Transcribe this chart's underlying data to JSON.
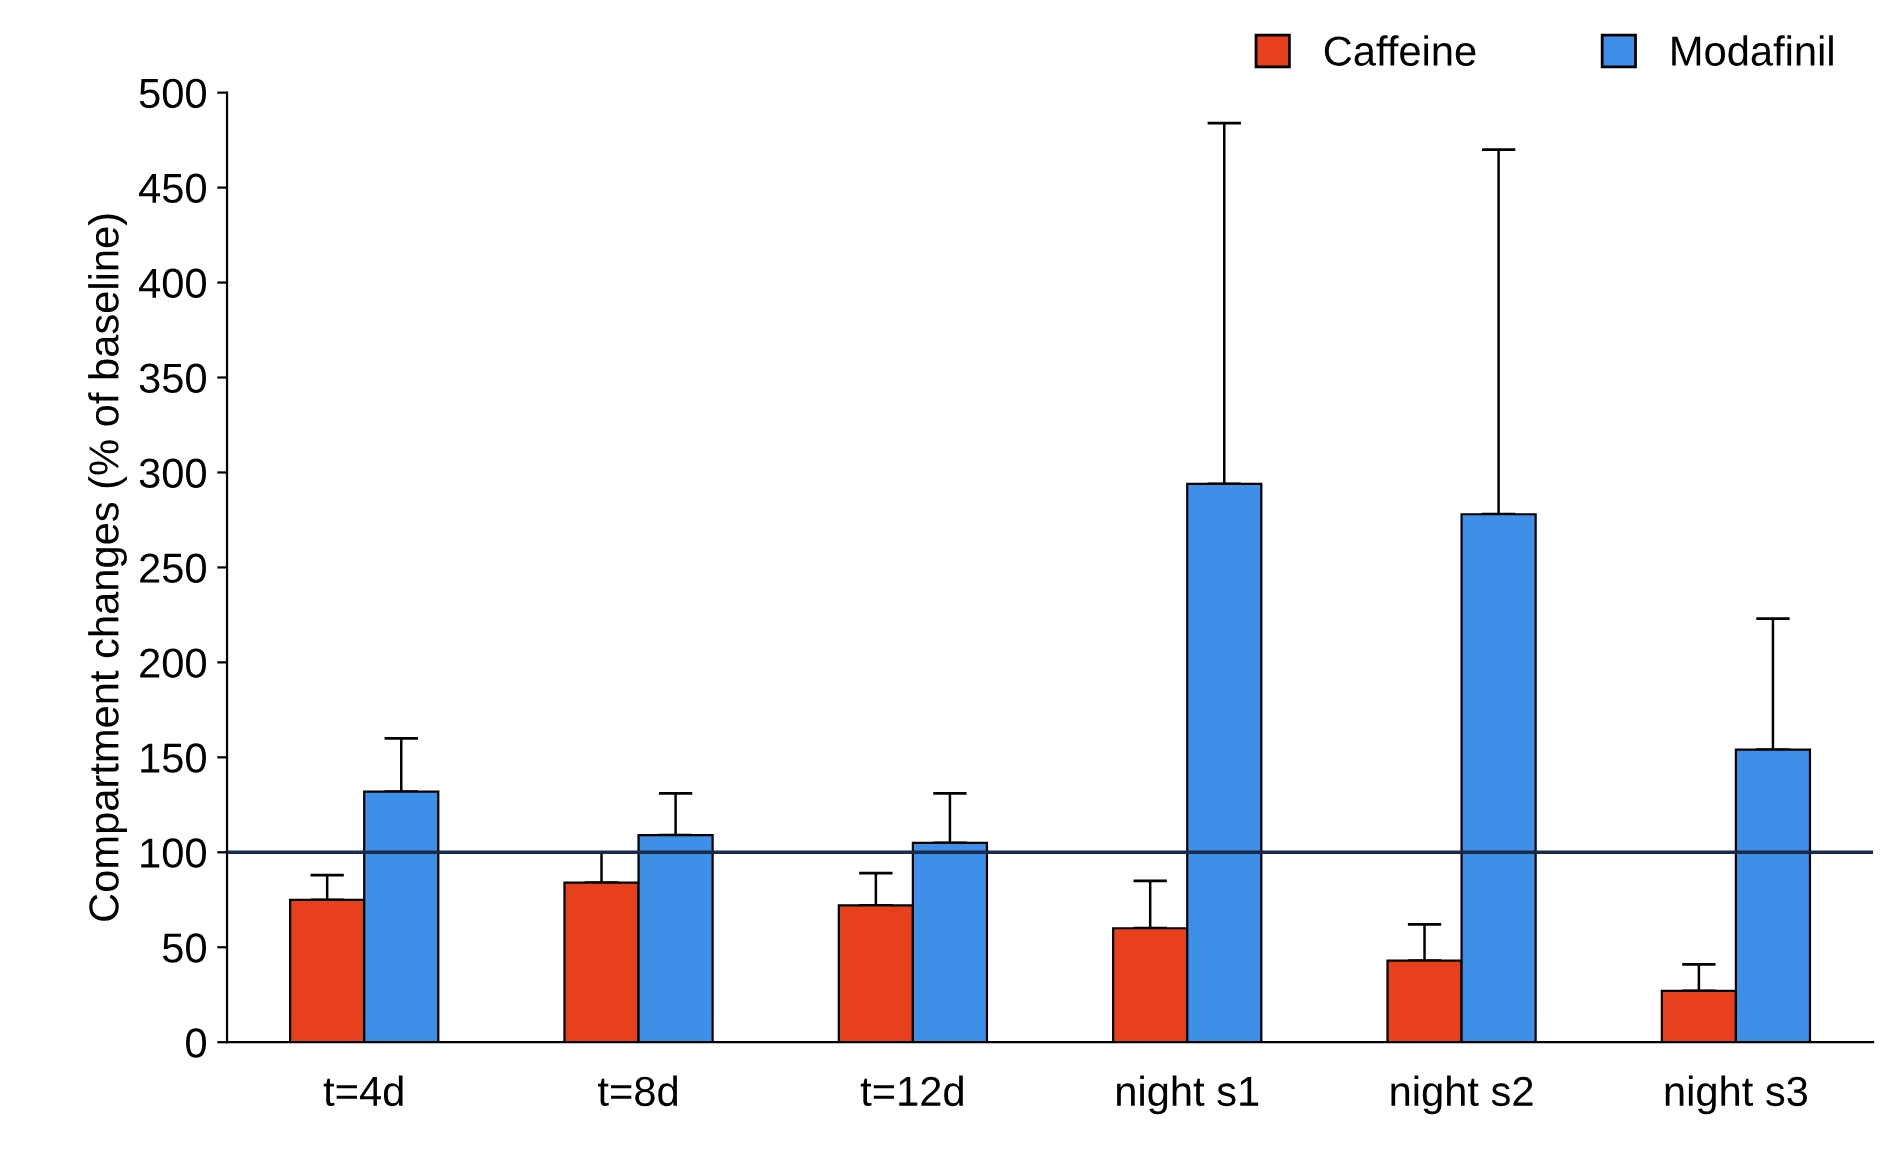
{
  "chart_data": {
    "type": "bar",
    "ylabel": "Compartment changes (% of baseline)",
    "categories": [
      "t=4d",
      "t=8d",
      "t=12d",
      "night s1",
      "night s2",
      "night s3"
    ],
    "series": [
      {
        "name": "Caffeine",
        "color": "#e8401c",
        "values": [
          75,
          84,
          72,
          60,
          43,
          27
        ],
        "errors": [
          [
            75,
            88
          ],
          [
            84,
            100
          ],
          [
            72,
            89
          ],
          [
            60,
            85
          ],
          [
            43,
            62
          ],
          [
            27,
            41
          ]
        ]
      },
      {
        "name": "Modafinil",
        "color": "#3d8fe8",
        "values": [
          132,
          109,
          105,
          294,
          278,
          154
        ],
        "errors": [
          [
            132,
            160
          ],
          [
            109,
            131
          ],
          [
            105,
            131
          ],
          [
            294,
            484
          ],
          [
            278,
            470
          ],
          [
            154,
            223
          ]
        ]
      }
    ],
    "ylim": [
      0,
      500
    ],
    "yticks": [
      0,
      50,
      100,
      150,
      200,
      250,
      300,
      350,
      400,
      450,
      500
    ],
    "ref_lines": [
      {
        "axis": "y",
        "value": 100,
        "color": "#1a2a4a"
      }
    ],
    "grid": false,
    "legend": "top right"
  }
}
